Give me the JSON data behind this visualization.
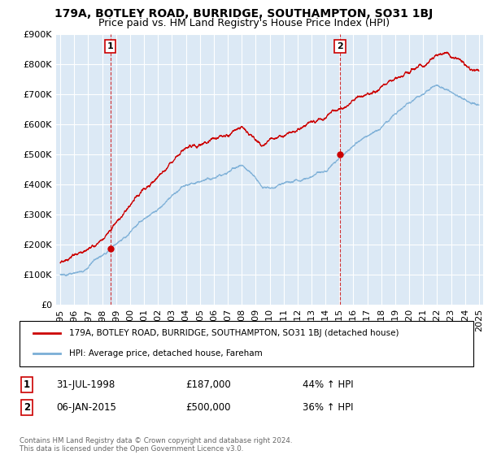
{
  "title1": "179A, BOTLEY ROAD, BURRIDGE, SOUTHAMPTON, SO31 1BJ",
  "title2": "Price paid vs. HM Land Registry's House Price Index (HPI)",
  "ylim": [
    0,
    900000
  ],
  "yticks": [
    0,
    100000,
    200000,
    300000,
    400000,
    500000,
    600000,
    700000,
    800000,
    900000
  ],
  "ytick_labels": [
    "£0",
    "£100K",
    "£200K",
    "£300K",
    "£400K",
    "£500K",
    "£600K",
    "£700K",
    "£800K",
    "£900K"
  ],
  "xlim_start": 1994.7,
  "xlim_end": 2025.3,
  "background_color": "#ffffff",
  "plot_bg_color": "#dce9f5",
  "grid_color": "#ffffff",
  "red_color": "#cc0000",
  "blue_color": "#7aaed6",
  "legend_label_red": "179A, BOTLEY ROAD, BURRIDGE, SOUTHAMPTON, SO31 1BJ (detached house)",
  "legend_label_blue": "HPI: Average price, detached house, Fareham",
  "sale1_date": "31-JUL-1998",
  "sale1_price": "£187,000",
  "sale1_hpi": "44% ↑ HPI",
  "sale1_x": 1998.58,
  "sale1_y": 187000,
  "sale2_date": "06-JAN-2015",
  "sale2_price": "£500,000",
  "sale2_hpi": "36% ↑ HPI",
  "sale2_x": 2015.04,
  "sale2_y": 500000,
  "copyright_text": "Contains HM Land Registry data © Crown copyright and database right 2024.\nThis data is licensed under the Open Government Licence v3.0.",
  "title1_fontsize": 10,
  "title2_fontsize": 9,
  "tick_fontsize": 8
}
